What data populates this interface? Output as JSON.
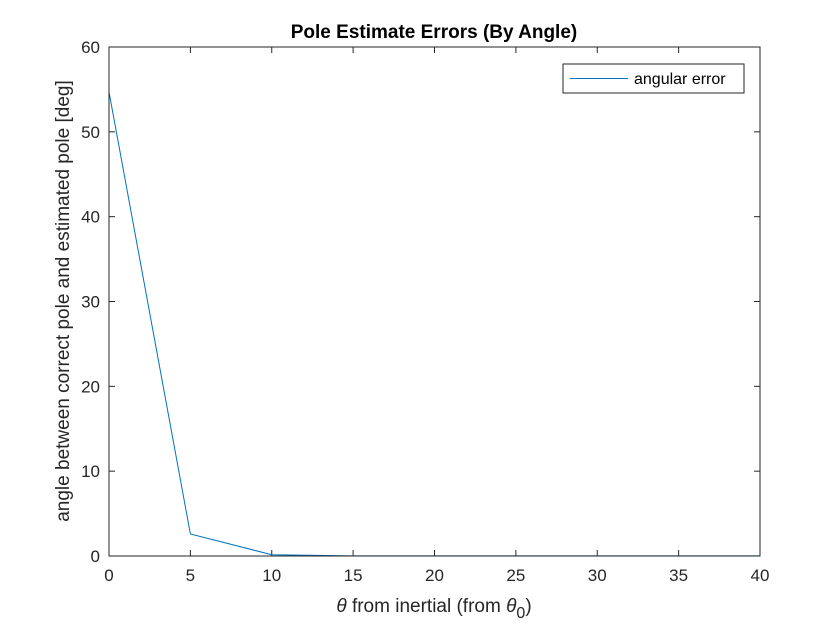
{
  "chart_data": {
    "type": "line",
    "title": "Pole Estimate Errors (By Angle)",
    "xlabel": {
      "prefix": "θ",
      "text": " from inertial (from ",
      "sub_symbol": "θ",
      "subscript": "0",
      "suffix": ")"
    },
    "ylabel": "angle between correct pole and estimated pole [deg]",
    "xlim": [
      0,
      40
    ],
    "ylim": [
      0,
      60
    ],
    "xticks": [
      0,
      5,
      10,
      15,
      20,
      25,
      30,
      35,
      40
    ],
    "yticks": [
      0,
      10,
      20,
      30,
      40,
      50,
      60
    ],
    "grid": false,
    "legend_position": "top-right",
    "series": [
      {
        "name": "angular error",
        "color": "#0072BD",
        "x": [
          0,
          5,
          10,
          15,
          20,
          25,
          30,
          35,
          40
        ],
        "y": [
          54.7,
          2.6,
          0.15,
          0.02,
          0.01,
          0.01,
          0.01,
          0.01,
          0.01
        ]
      }
    ]
  }
}
